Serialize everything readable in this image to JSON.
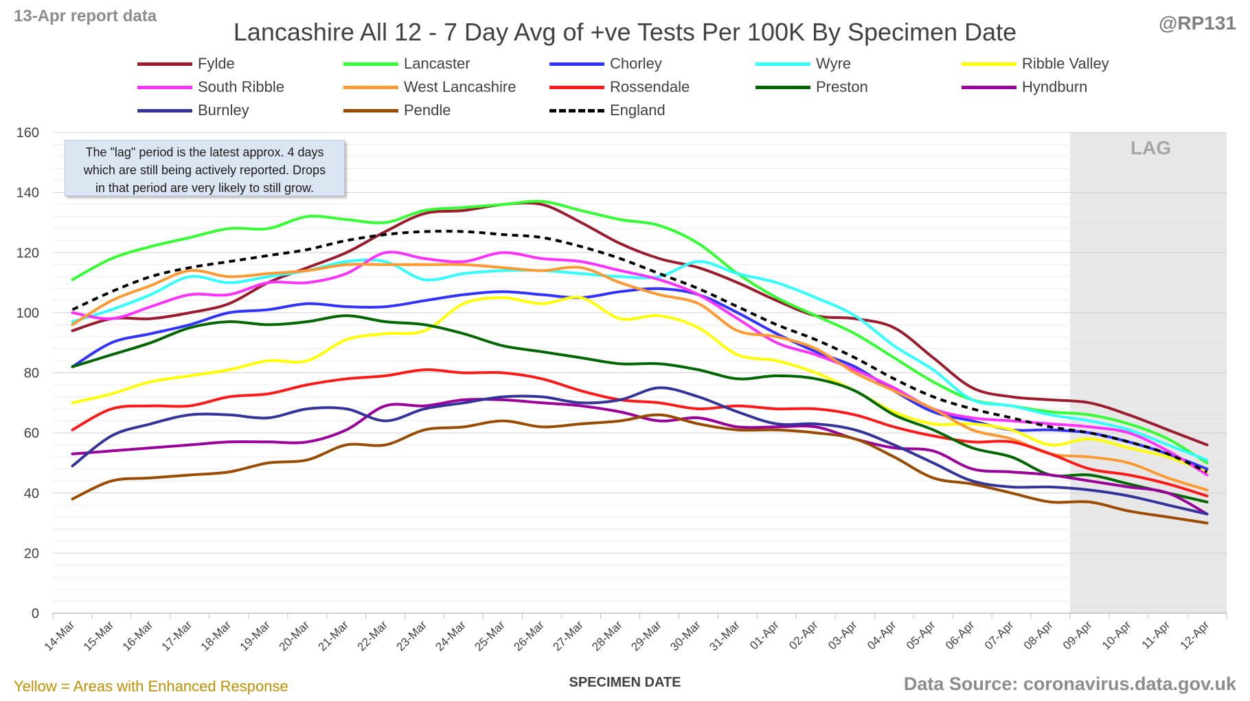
{
  "header": {
    "report_label": "13-Apr report data",
    "handle": "@RP131",
    "title": "Lancashire All 12 - 7 Day Avg of +ve Tests Per 100K By Specimen Date"
  },
  "footer": {
    "enhanced_note": "Yellow = Areas with Enhanced Response",
    "source": "Data Source: coronavirus.data.gov.uk"
  },
  "note_box": {
    "lines": [
      "The \"lag\" period is the latest approx. 4 days",
      "which are still being actively reported.  Drops",
      "in that period are very likely to still grow."
    ]
  },
  "lag_label": "LAG",
  "colors": {
    "Fylde": "#9b1c2e",
    "Lancaster": "#33ff33",
    "Chorley": "#3333ff",
    "Wyre": "#33ffff",
    "Ribble Valley": "#ffff00",
    "South Ribble": "#ff33ff",
    "West Lancashire": "#ff9933",
    "Rossendale": "#ff1a1a",
    "Preston": "#006600",
    "Hyndburn": "#990099",
    "Burnley": "#333399",
    "Pendle": "#994c00",
    "England": "#000000"
  },
  "chart_data": {
    "type": "line",
    "title": "Lancashire All 12 - 7 Day Avg of +ve Tests Per 100K By Specimen Date",
    "xlabel": "SPECIMEN DATE",
    "ylabel": "",
    "ylim": [
      0,
      160
    ],
    "yticks": [
      0,
      20,
      40,
      60,
      80,
      100,
      120,
      140,
      160
    ],
    "grid": true,
    "legend_position": "top",
    "lag_start": "09-Apr",
    "lag_end": "12-Apr",
    "categories": [
      "14-Mar",
      "15-Mar",
      "16-Mar",
      "17-Mar",
      "18-Mar",
      "19-Mar",
      "20-Mar",
      "21-Mar",
      "22-Mar",
      "23-Mar",
      "24-Mar",
      "25-Mar",
      "26-Mar",
      "27-Mar",
      "28-Mar",
      "29-Mar",
      "30-Mar",
      "31-Mar",
      "01-Apr",
      "02-Apr",
      "03-Apr",
      "04-Apr",
      "05-Apr",
      "06-Apr",
      "07-Apr",
      "08-Apr",
      "09-Apr",
      "10-Apr",
      "11-Apr",
      "12-Apr"
    ],
    "series": [
      {
        "name": "Fylde",
        "values": [
          94,
          98,
          98,
          100,
          103,
          110,
          115,
          120,
          127,
          133,
          134,
          136,
          136,
          130,
          123,
          118,
          115,
          110,
          104,
          99,
          98,
          95,
          85,
          75,
          72,
          71,
          70,
          66,
          61,
          56
        ],
        "dash": false
      },
      {
        "name": "Lancaster",
        "values": [
          111,
          118,
          122,
          125,
          128,
          128,
          132,
          131,
          130,
          134,
          135,
          136,
          137,
          134,
          131,
          129,
          123,
          113,
          105,
          99,
          93,
          85,
          77,
          71,
          69,
          67,
          66,
          63,
          58,
          50
        ],
        "dash": false
      },
      {
        "name": "Chorley",
        "values": [
          82,
          90,
          93,
          96,
          100,
          101,
          103,
          102,
          102,
          104,
          106,
          107,
          106,
          105,
          107,
          108,
          106,
          100,
          93,
          87,
          82,
          74,
          67,
          64,
          61,
          61,
          60,
          57,
          53,
          48
        ],
        "dash": false
      },
      {
        "name": "Wyre",
        "values": [
          97,
          101,
          106,
          112,
          110,
          112,
          114,
          117,
          117,
          111,
          113,
          114,
          114,
          113,
          112,
          112,
          117,
          113,
          110,
          105,
          99,
          89,
          81,
          71,
          69,
          66,
          64,
          61,
          56,
          51
        ],
        "dash": false
      },
      {
        "name": "Ribble Valley",
        "values": [
          70,
          73,
          77,
          79,
          81,
          84,
          84,
          91,
          93,
          94,
          103,
          105,
          103,
          105,
          98,
          99,
          95,
          86,
          84,
          80,
          74,
          67,
          63,
          63,
          61,
          56,
          58,
          55,
          52,
          47
        ],
        "dash": false
      },
      {
        "name": "South Ribble",
        "values": [
          100,
          98,
          102,
          106,
          106,
          110,
          110,
          113,
          120,
          118,
          117,
          120,
          118,
          117,
          114,
          111,
          106,
          98,
          90,
          86,
          81,
          75,
          68,
          65,
          64,
          63,
          62,
          60,
          54,
          46
        ],
        "dash": false
      },
      {
        "name": "West Lancashire",
        "values": [
          96,
          104,
          109,
          114,
          112,
          113,
          114,
          116,
          116,
          116,
          116,
          115,
          114,
          115,
          110,
          106,
          103,
          94,
          92,
          88,
          80,
          74,
          68,
          61,
          58,
          53,
          52,
          50,
          45,
          41
        ],
        "dash": false
      },
      {
        "name": "Rossendale",
        "values": [
          61,
          68,
          69,
          69,
          72,
          73,
          76,
          78,
          79,
          81,
          80,
          80,
          78,
          74,
          71,
          70,
          68,
          69,
          68,
          68,
          66,
          62,
          59,
          57,
          57,
          53,
          48,
          46,
          43,
          39
        ],
        "dash": false
      },
      {
        "name": "Preston",
        "values": [
          82,
          86,
          90,
          95,
          97,
          96,
          97,
          99,
          97,
          96,
          93,
          89,
          87,
          85,
          83,
          83,
          81,
          78,
          79,
          78,
          74,
          66,
          61,
          55,
          52,
          46,
          46,
          43,
          40,
          37
        ],
        "dash": false
      },
      {
        "name": "Hyndburn",
        "values": [
          53,
          54,
          55,
          56,
          57,
          57,
          57,
          61,
          69,
          69,
          71,
          71,
          70,
          69,
          67,
          64,
          65,
          62,
          62,
          62,
          58,
          55,
          54,
          48,
          47,
          46,
          44,
          42,
          40,
          33
        ],
        "dash": false
      },
      {
        "name": "Burnley",
        "values": [
          49,
          59,
          63,
          66,
          66,
          65,
          68,
          68,
          64,
          68,
          70,
          72,
          72,
          70,
          71,
          75,
          72,
          67,
          63,
          63,
          61,
          56,
          50,
          44,
          42,
          42,
          41,
          39,
          36,
          33
        ],
        "dash": false
      },
      {
        "name": "Pendle",
        "values": [
          38,
          44,
          45,
          46,
          47,
          50,
          51,
          56,
          56,
          61,
          62,
          64,
          62,
          63,
          64,
          66,
          63,
          61,
          61,
          60,
          58,
          52,
          45,
          43,
          40,
          37,
          37,
          34,
          32,
          30
        ],
        "dash": false
      },
      {
        "name": "England",
        "values": [
          101,
          107,
          112,
          115,
          117,
          119,
          121,
          124,
          126,
          127,
          127,
          126,
          125,
          122,
          118,
          113,
          108,
          102,
          96,
          91,
          85,
          78,
          72,
          68,
          65,
          62,
          60,
          57,
          53,
          47
        ],
        "dash": true
      }
    ]
  }
}
